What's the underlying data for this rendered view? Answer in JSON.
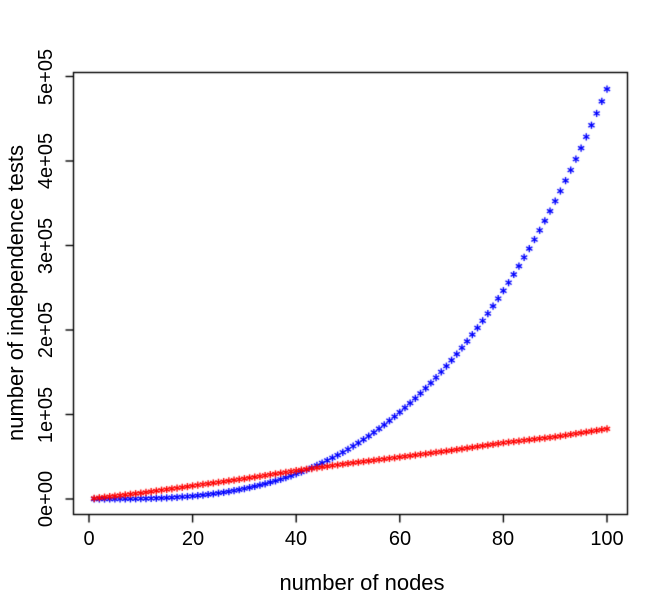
{
  "figure": {
    "xlabel": "number of nodes",
    "ylabel": "number of independence tests",
    "x_ticks": [
      "0",
      "20",
      "40",
      "60",
      "80",
      "100"
    ],
    "y_ticks": [
      "0e+00",
      "1e+05",
      "2e+05",
      "3e+05",
      "4e+05",
      "5e+05"
    ],
    "background_color": "#ffffff",
    "axis_color": "#000000"
  },
  "chart_data": {
    "type": "scatter",
    "point_symbol": "asterisk",
    "title": "",
    "xlabel": "number of nodes",
    "ylabel": "number of independence tests",
    "xlim": [
      0,
      100
    ],
    "ylim": [
      0,
      500000
    ],
    "grid": false,
    "legend": "none",
    "x_tick_values": [
      0,
      20,
      40,
      60,
      80,
      100
    ],
    "y_tick_values": [
      0,
      100000,
      200000,
      300000,
      400000,
      500000
    ],
    "x": [
      1,
      2,
      3,
      4,
      5,
      6,
      7,
      8,
      9,
      10,
      11,
      12,
      13,
      14,
      15,
      16,
      17,
      18,
      19,
      20,
      21,
      22,
      23,
      24,
      25,
      26,
      27,
      28,
      29,
      30,
      31,
      32,
      33,
      34,
      35,
      36,
      37,
      38,
      39,
      40,
      41,
      42,
      43,
      44,
      45,
      46,
      47,
      48,
      49,
      50,
      51,
      52,
      53,
      54,
      55,
      56,
      57,
      58,
      59,
      60,
      61,
      62,
      63,
      64,
      65,
      66,
      67,
      68,
      69,
      70,
      71,
      72,
      73,
      74,
      75,
      76,
      77,
      78,
      79,
      80,
      81,
      82,
      83,
      84,
      85,
      86,
      87,
      88,
      89,
      90,
      91,
      92,
      93,
      94,
      95,
      96,
      97,
      98,
      99,
      100
    ],
    "series": [
      {
        "name": "blue-series",
        "color": "#0000ff",
        "values": [
          0,
          0,
          3,
          12,
          30,
          60,
          105,
          168,
          252,
          360,
          495,
          660,
          858,
          1092,
          1365,
          1680,
          2040,
          2448,
          2907,
          3420,
          3990,
          4620,
          5313,
          6072,
          6900,
          7800,
          8775,
          9828,
          10962,
          12180,
          13485,
          14880,
          16368,
          17952,
          19635,
          21420,
          23310,
          25308,
          27417,
          29640,
          31980,
          34440,
          37023,
          39732,
          42570,
          45540,
          48645,
          51888,
          55272,
          58800,
          62475,
          66300,
          70278,
          74412,
          78705,
          83160,
          87780,
          92568,
          97527,
          102660,
          107970,
          113460,
          119133,
          124992,
          131040,
          137280,
          143715,
          150348,
          157182,
          164220,
          171465,
          178920,
          186588,
          194472,
          202575,
          210900,
          219450,
          228228,
          237237,
          246480,
          255960,
          265680,
          275643,
          285852,
          296310,
          307020,
          317985,
          329208,
          340692,
          352440,
          364455,
          376740,
          389298,
          402132,
          415245,
          428640,
          442320,
          456288,
          470547,
          485100
        ]
      },
      {
        "name": "red-series",
        "color": "#ff0000",
        "values": [
          800,
          1490,
          2180,
          2870,
          3560,
          4240,
          4930,
          5620,
          6310,
          7000,
          7850,
          8700,
          9550,
          10400,
          11250,
          12100,
          12950,
          13800,
          14650,
          15500,
          16350,
          17200,
          18050,
          18900,
          19750,
          20600,
          21450,
          22300,
          23150,
          24000,
          24950,
          25900,
          26850,
          27800,
          28750,
          29700,
          30650,
          31600,
          32550,
          33500,
          34350,
          35200,
          36050,
          36900,
          37750,
          38600,
          39450,
          40300,
          41150,
          42000,
          42750,
          43500,
          44250,
          45000,
          45750,
          46500,
          47250,
          48000,
          48750,
          49500,
          50300,
          51100,
          51900,
          52700,
          53500,
          54300,
          55100,
          55900,
          56700,
          57500,
          58400,
          59300,
          60200,
          61100,
          62000,
          62900,
          63800,
          64700,
          65600,
          66500,
          67200,
          67900,
          68600,
          69300,
          70000,
          70700,
          71400,
          72100,
          72800,
          73500,
          74450,
          75400,
          76350,
          77300,
          78250,
          79200,
          80150,
          81100,
          82050,
          83000
        ]
      }
    ]
  }
}
